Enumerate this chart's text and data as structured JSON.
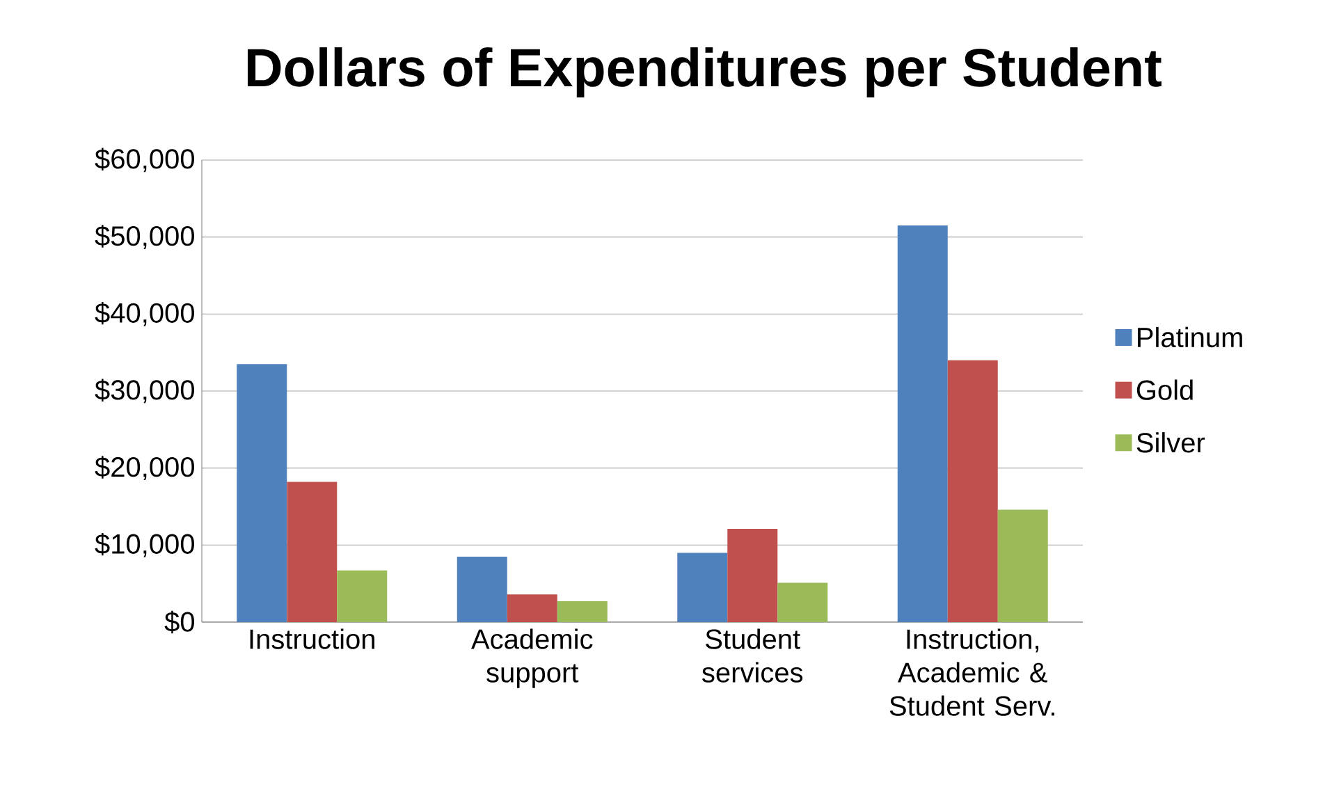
{
  "chart_data": {
    "type": "bar",
    "title": "Dollars of Expenditures per Student",
    "categories": [
      "Instruction",
      "Academic support",
      "Student services",
      "Instruction, Academic & Student Serv."
    ],
    "series": [
      {
        "name": "Platinum",
        "color": "#4f81bd",
        "values": [
          33500,
          8500,
          9000,
          51500
        ]
      },
      {
        "name": "Gold",
        "color": "#c0504d",
        "values": [
          18200,
          3600,
          12100,
          34000
        ]
      },
      {
        "name": "Silver",
        "color": "#9bbb59",
        "values": [
          6700,
          2700,
          5100,
          14600
        ]
      }
    ],
    "ylim": [
      0,
      60000
    ],
    "yticks": [
      {
        "value": 0,
        "label": "$0"
      },
      {
        "value": 10000,
        "label": "$10,000"
      },
      {
        "value": 20000,
        "label": "$20,000"
      },
      {
        "value": 30000,
        "label": "$30,000"
      },
      {
        "value": 40000,
        "label": "$40,000"
      },
      {
        "value": 50000,
        "label": "$50,000"
      },
      {
        "value": 60000,
        "label": "$60,000"
      }
    ],
    "grid": "y",
    "legend": "right"
  }
}
